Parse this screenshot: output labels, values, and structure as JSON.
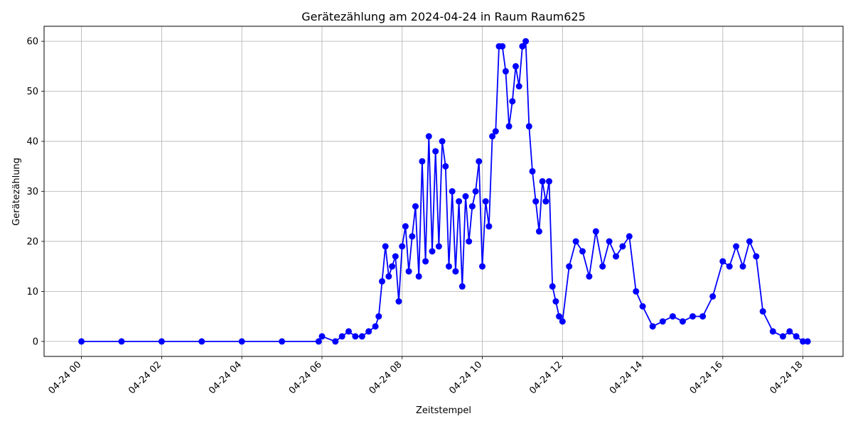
{
  "chart_data": {
    "type": "line",
    "title": "Gerätezählung am 2024-04-24 in Raum Raum625",
    "xlabel": "Zeitstempel",
    "ylabel": "Gerätezählung",
    "xlim": [
      "2024-04-23T23:04",
      "2024-04-24T19:00"
    ],
    "ylim": [
      -3,
      63
    ],
    "grid": true,
    "x_ticks": [
      {
        "value": "2024-04-24T00:00",
        "label": "04-24 00"
      },
      {
        "value": "2024-04-24T02:00",
        "label": "04-24 02"
      },
      {
        "value": "2024-04-24T04:00",
        "label": "04-24 04"
      },
      {
        "value": "2024-04-24T06:00",
        "label": "04-24 06"
      },
      {
        "value": "2024-04-24T08:00",
        "label": "04-24 08"
      },
      {
        "value": "2024-04-24T10:00",
        "label": "04-24 10"
      },
      {
        "value": "2024-04-24T12:00",
        "label": "04-24 12"
      },
      {
        "value": "2024-04-24T14:00",
        "label": "04-24 14"
      },
      {
        "value": "2024-04-24T16:00",
        "label": "04-24 16"
      },
      {
        "value": "2024-04-24T18:00",
        "label": "04-24 18"
      }
    ],
    "y_ticks": [
      0,
      10,
      20,
      30,
      40,
      50,
      60
    ],
    "series": [
      {
        "color": "#0000ff",
        "marker": "circle",
        "x": [
          "2024-04-24T00:00",
          "2024-04-24T01:00",
          "2024-04-24T02:00",
          "2024-04-24T03:00",
          "2024-04-24T04:00",
          "2024-04-24T05:00",
          "2024-04-24T05:55",
          "2024-04-24T06:00",
          "2024-04-24T06:20",
          "2024-04-24T06:30",
          "2024-04-24T06:40",
          "2024-04-24T06:50",
          "2024-04-24T07:00",
          "2024-04-24T07:10",
          "2024-04-24T07:20",
          "2024-04-24T07:25",
          "2024-04-24T07:30",
          "2024-04-24T07:35",
          "2024-04-24T07:40",
          "2024-04-24T07:45",
          "2024-04-24T07:50",
          "2024-04-24T07:55",
          "2024-04-24T08:00",
          "2024-04-24T08:05",
          "2024-04-24T08:10",
          "2024-04-24T08:15",
          "2024-04-24T08:20",
          "2024-04-24T08:25",
          "2024-04-24T08:30",
          "2024-04-24T08:35",
          "2024-04-24T08:40",
          "2024-04-24T08:45",
          "2024-04-24T08:50",
          "2024-04-24T08:55",
          "2024-04-24T09:00",
          "2024-04-24T09:05",
          "2024-04-24T09:10",
          "2024-04-24T09:15",
          "2024-04-24T09:20",
          "2024-04-24T09:25",
          "2024-04-24T09:30",
          "2024-04-24T09:35",
          "2024-04-24T09:40",
          "2024-04-24T09:45",
          "2024-04-24T09:50",
          "2024-04-24T09:55",
          "2024-04-24T10:00",
          "2024-04-24T10:05",
          "2024-04-24T10:10",
          "2024-04-24T10:15",
          "2024-04-24T10:20",
          "2024-04-24T10:25",
          "2024-04-24T10:30",
          "2024-04-24T10:35",
          "2024-04-24T10:40",
          "2024-04-24T10:45",
          "2024-04-24T10:50",
          "2024-04-24T10:55",
          "2024-04-24T11:00",
          "2024-04-24T11:05",
          "2024-04-24T11:10",
          "2024-04-24T11:15",
          "2024-04-24T11:20",
          "2024-04-24T11:25",
          "2024-04-24T11:30",
          "2024-04-24T11:35",
          "2024-04-24T11:40",
          "2024-04-24T11:45",
          "2024-04-24T11:50",
          "2024-04-24T11:55",
          "2024-04-24T12:00",
          "2024-04-24T12:10",
          "2024-04-24T12:20",
          "2024-04-24T12:30",
          "2024-04-24T12:40",
          "2024-04-24T12:50",
          "2024-04-24T13:00",
          "2024-04-24T13:10",
          "2024-04-24T13:20",
          "2024-04-24T13:30",
          "2024-04-24T13:40",
          "2024-04-24T13:50",
          "2024-04-24T14:00",
          "2024-04-24T14:15",
          "2024-04-24T14:30",
          "2024-04-24T14:45",
          "2024-04-24T15:00",
          "2024-04-24T15:15",
          "2024-04-24T15:30",
          "2024-04-24T15:45",
          "2024-04-24T16:00",
          "2024-04-24T16:10",
          "2024-04-24T16:20",
          "2024-04-24T16:30",
          "2024-04-24T16:40",
          "2024-04-24T16:50",
          "2024-04-24T17:00",
          "2024-04-24T17:15",
          "2024-04-24T17:30",
          "2024-04-24T17:40",
          "2024-04-24T17:50",
          "2024-04-24T18:00",
          "2024-04-24T18:07"
        ],
        "y": [
          0,
          0,
          0,
          0,
          0,
          0,
          0,
          1,
          0,
          1,
          2,
          1,
          1,
          2,
          3,
          5,
          12,
          19,
          13,
          15,
          17,
          8,
          19,
          23,
          14,
          21,
          27,
          13,
          36,
          16,
          41,
          18,
          38,
          19,
          40,
          35,
          15,
          30,
          14,
          28,
          11,
          29,
          20,
          27,
          30,
          36,
          15,
          28,
          23,
          41,
          42,
          59,
          59,
          54,
          43,
          48,
          55,
          51,
          59,
          60,
          43,
          34,
          28,
          22,
          32,
          28,
          32,
          11,
          8,
          5,
          4,
          15,
          20,
          18,
          13,
          22,
          15,
          20,
          17,
          19,
          21,
          10,
          7,
          3,
          4,
          5,
          4,
          5,
          5,
          9,
          16,
          15,
          19,
          15,
          20,
          17,
          6,
          2,
          1,
          2,
          1,
          0,
          0
        ]
      }
    ]
  }
}
